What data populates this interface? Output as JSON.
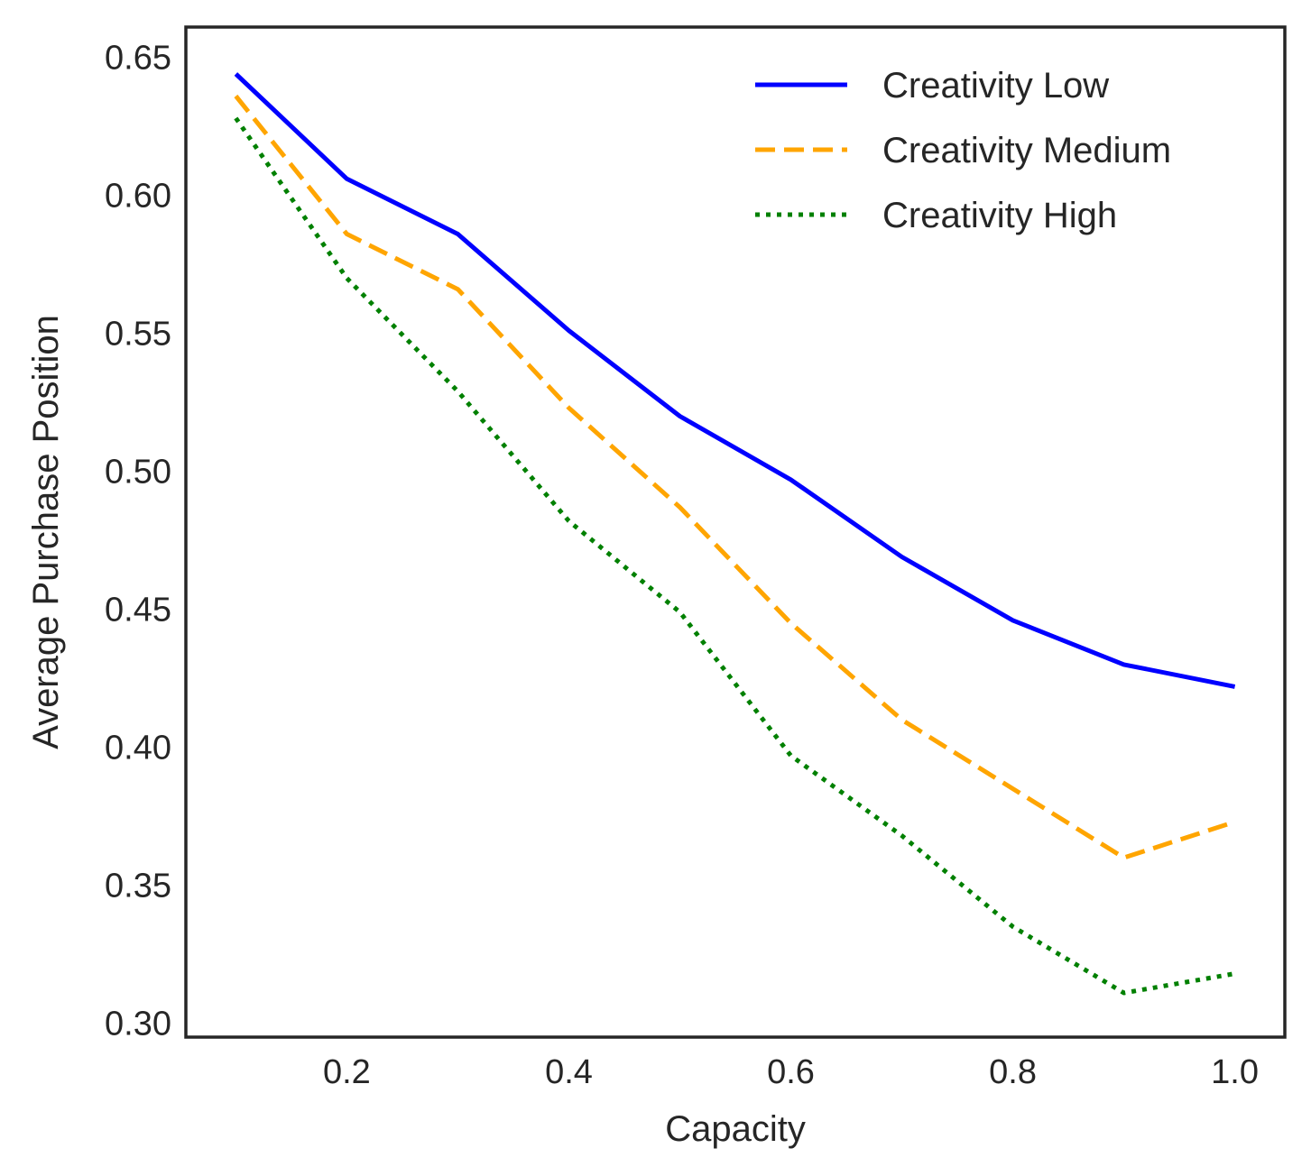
{
  "chart_data": {
    "type": "line",
    "title": "",
    "xlabel": "Capacity",
    "ylabel": "Average Purchase Position",
    "xlim": [
      0.055,
      1.045
    ],
    "ylim": [
      0.295,
      0.661
    ],
    "x_ticks": [
      "0.2",
      "0.4",
      "0.6",
      "0.8",
      "1.0"
    ],
    "y_ticks": [
      "0.30",
      "0.35",
      "0.40",
      "0.45",
      "0.50",
      "0.55",
      "0.60",
      "0.65"
    ],
    "grid": false,
    "legend_position": "top-right",
    "x": [
      0.1,
      0.2,
      0.3,
      0.4,
      0.5,
      0.6,
      0.7,
      0.8,
      0.9,
      1.0
    ],
    "series": [
      {
        "name": "Creativity Low",
        "color": "#0000ff",
        "style": "solid",
        "values": [
          0.644,
          0.606,
          0.586,
          0.551,
          0.52,
          0.497,
          0.469,
          0.446,
          0.43,
          0.422
        ]
      },
      {
        "name": "Creativity Medium",
        "color": "#ffa500",
        "style": "dashed",
        "values": [
          0.636,
          0.586,
          0.566,
          0.523,
          0.487,
          0.445,
          0.41,
          0.385,
          0.36,
          0.373
        ]
      },
      {
        "name": "Creativity High",
        "color": "#008000",
        "style": "dotted",
        "values": [
          0.628,
          0.57,
          0.529,
          0.482,
          0.449,
          0.397,
          0.368,
          0.335,
          0.311,
          0.318
        ]
      }
    ]
  }
}
